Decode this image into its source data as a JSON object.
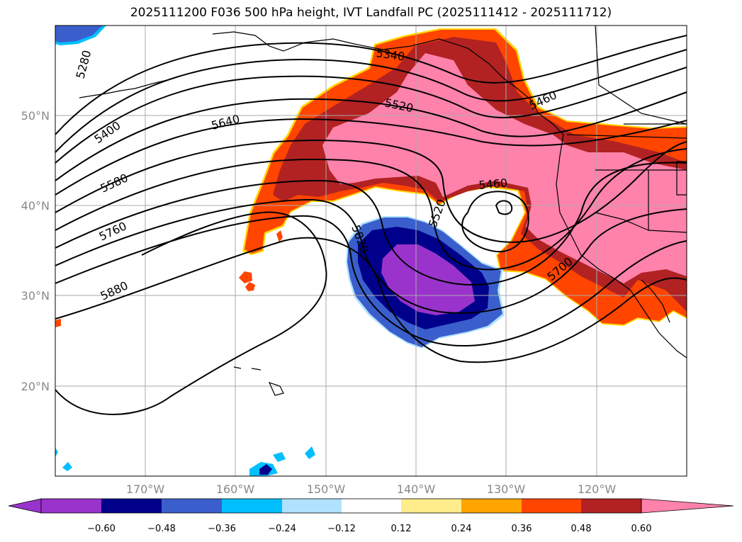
{
  "title": "2025111200 F036 500 hPa height, IVT Landfall PC (2025111412 - 2025111712)",
  "map": {
    "longitude_labels": [
      "170°W",
      "160°W",
      "150°W",
      "140°W",
      "130°W",
      "120°W"
    ],
    "latitude_labels": [
      "50°N",
      "40°N",
      "30°N",
      "20°N"
    ],
    "extent": {
      "lon_min": -180,
      "lon_max": -110,
      "lat_min": 10,
      "lat_max": 60
    }
  },
  "height_contours": {
    "units": "m",
    "labels": [
      "5280",
      "5340",
      "5400",
      "5460",
      "5460",
      "5520",
      "5520",
      "5580",
      "5640",
      "5700",
      "5760",
      "5820",
      "5880"
    ]
  },
  "colorbar": {
    "ticks": [
      "−0.60",
      "−0.48",
      "−0.36",
      "−0.24",
      "−0.12",
      "0.12",
      "0.24",
      "0.36",
      "0.48",
      "0.60"
    ],
    "colors": [
      "#9933cc",
      "#00008b",
      "#3a5fcd",
      "#00bfff",
      "#b0e2ff",
      "#ffffff",
      "#ffec8b",
      "#ffa500",
      "#ff4500",
      "#b22222",
      "#ff82ab"
    ]
  }
}
